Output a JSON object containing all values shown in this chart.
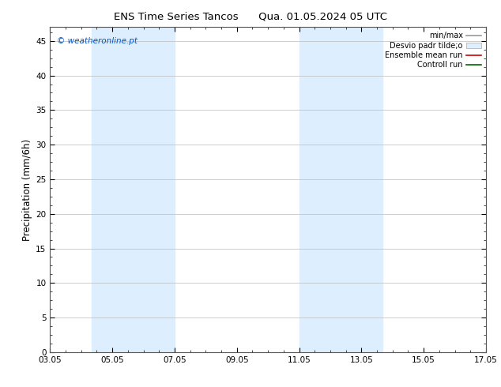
{
  "title_left": "ENS Time Series Tancos",
  "title_right": "Qua. 01.05.2024 05 UTC",
  "ylabel": "Precipitation (mm/6h)",
  "xlim": [
    0,
    14
  ],
  "ylim": [
    0,
    47
  ],
  "yticks": [
    0,
    5,
    10,
    15,
    20,
    25,
    30,
    35,
    40,
    45
  ],
  "xtick_labels": [
    "03.05",
    "05.05",
    "07.05",
    "09.05",
    "11.05",
    "13.05",
    "15.05",
    "17.05"
  ],
  "xtick_positions": [
    0,
    2,
    4,
    6,
    8,
    10,
    12,
    14
  ],
  "shaded_bands": [
    {
      "x_start": 1.33,
      "x_end": 2.67,
      "color": "#ddeeff"
    },
    {
      "x_start": 2.67,
      "x_end": 4.0,
      "color": "#ddeeff"
    },
    {
      "x_start": 8.0,
      "x_end": 9.33,
      "color": "#ddeeff"
    },
    {
      "x_start": 9.33,
      "x_end": 10.67,
      "color": "#ddeeff"
    }
  ],
  "watermark_text": "© weatheronline.pt",
  "watermark_color": "#0055cc",
  "background_color": "#ffffff",
  "plot_bg_color": "#ffffff",
  "grid_color": "#bbbbbb",
  "tick_color": "#000000",
  "legend_labels": [
    "min/max",
    "Desvio padr tilde;o",
    "Ensemble mean run",
    "Controll run"
  ],
  "legend_colors": [
    "#999999",
    "#ddeeff",
    "#cc0000",
    "#006600"
  ]
}
